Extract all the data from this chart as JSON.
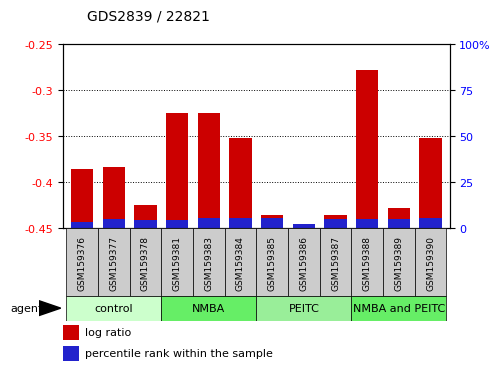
{
  "title": "GDS2839 / 22821",
  "samples": [
    "GSM159376",
    "GSM159377",
    "GSM159378",
    "GSM159381",
    "GSM159383",
    "GSM159384",
    "GSM159385",
    "GSM159386",
    "GSM159387",
    "GSM159388",
    "GSM159389",
    "GSM159390"
  ],
  "log_ratio": [
    -0.385,
    -0.383,
    -0.425,
    -0.325,
    -0.325,
    -0.352,
    -0.435,
    -0.45,
    -0.435,
    -0.278,
    -0.428,
    -0.352
  ],
  "percentile_rank": [
    3.5,
    5.0,
    4.5,
    4.5,
    5.5,
    5.5,
    5.5,
    2.5,
    5.0,
    5.0,
    5.0,
    5.5
  ],
  "left_ylim": [
    -0.45,
    -0.25
  ],
  "left_yticks": [
    -0.45,
    -0.4,
    -0.35,
    -0.3,
    -0.25
  ],
  "right_ylim": [
    0,
    100
  ],
  "right_yticks": [
    0,
    25,
    50,
    75,
    100
  ],
  "bar_color_red": "#CC0000",
  "bar_color_blue": "#2222CC",
  "groups": [
    {
      "label": "control",
      "indices": [
        0,
        1,
        2
      ],
      "color": "#CCFFCC"
    },
    {
      "label": "NMBA",
      "indices": [
        3,
        4,
        5
      ],
      "color": "#66EE66"
    },
    {
      "label": "PEITC",
      "indices": [
        6,
        7,
        8
      ],
      "color": "#99EE99"
    },
    {
      "label": "NMBA and PEITC",
      "indices": [
        9,
        10,
        11
      ],
      "color": "#66EE66"
    }
  ],
  "tick_bg": "#CCCCCC",
  "legend_red_label": "log ratio",
  "legend_blue_label": "percentile rank within the sample",
  "title_fontsize": 10,
  "sample_label_fontsize": 6.5,
  "group_label_fontsize": 8,
  "legend_fontsize": 8
}
